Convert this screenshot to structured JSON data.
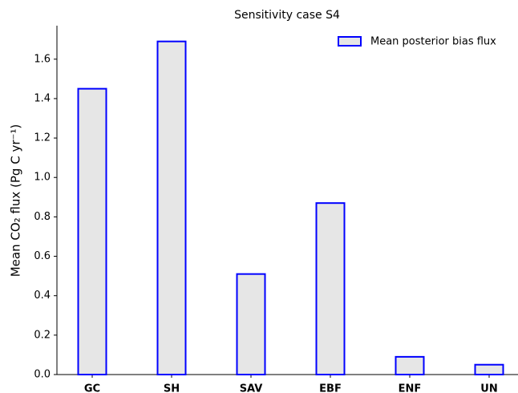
{
  "chart_data": {
    "type": "bar",
    "title": "Sensitivity case S4",
    "ylabel": "Mean CO₂ flux (Pg C yr⁻¹)",
    "categories": [
      "GC",
      "SH",
      "SAV",
      "EBF",
      "ENF",
      "UN"
    ],
    "series": [
      {
        "name": "Mean posterior bias flux",
        "color": "#0000ff",
        "values": [
          1.45,
          1.69,
          0.51,
          0.87,
          0.09,
          0.05
        ]
      }
    ],
    "ylim": [
      0,
      1.77
    ],
    "yticks": [
      {
        "value": 0,
        "label": "0.0"
      },
      0.2,
      0.4,
      0.6,
      0.8,
      {
        "value": 1,
        "label": "1.0"
      },
      1.2,
      1.4,
      1.6
    ],
    "legend": "upper right"
  }
}
